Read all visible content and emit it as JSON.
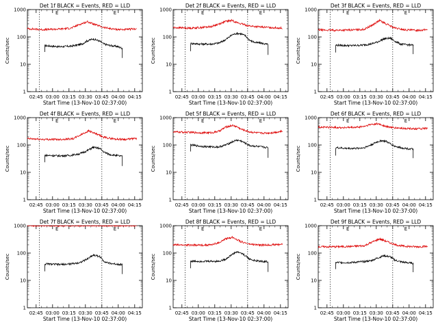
{
  "shared": {
    "xlabel": "Start Time (13-Nov-10 02:37:00)",
    "ylabel": "Counts/sec",
    "x_ticks": [
      "02:45",
      "03:00",
      "03:15",
      "03:30",
      "03:45",
      "04:00",
      "04:15"
    ],
    "y_ticks": [
      "1",
      "10",
      "100",
      "1000"
    ],
    "marker_label": "E",
    "colors": {
      "events": "#000000",
      "lld": "#dd0000",
      "axes": "#000000",
      "background": "#ffffff"
    },
    "x_range_minutes_after_0237": [
      0,
      105
    ],
    "y_range": [
      1,
      1000
    ],
    "y_scale": "log",
    "note_x_units": "minutes after 02:37:00"
  },
  "chart_data": [
    {
      "type": "line",
      "title": "Det 1f BLACK = Events, RED = LLD",
      "dashed_x": [
        11,
        68
      ],
      "marker_x": [
        27,
        80
      ],
      "series": [
        {
          "name": "Events",
          "color": "#000000",
          "x": [
            16,
            30,
            40,
            50,
            54,
            60,
            66,
            70,
            74,
            78,
            82,
            87
          ],
          "values": [
            48,
            44,
            46,
            55,
            70,
            85,
            70,
            55,
            50,
            47,
            45,
            38
          ]
        },
        {
          "name": "LLD",
          "color": "#dd0000",
          "x": [
            0,
            15,
            30,
            40,
            48,
            55,
            62,
            70,
            80,
            90,
            100
          ],
          "values": [
            200,
            185,
            195,
            210,
            290,
            360,
            280,
            220,
            190,
            185,
            200
          ]
        }
      ]
    },
    {
      "type": "line",
      "title": "Det 2f BLACK = Events, RED = LLD",
      "dashed_x": [
        11,
        68
      ],
      "marker_x": [
        27,
        80
      ],
      "series": [
        {
          "name": "Events",
          "color": "#000000",
          "x": [
            16,
            25,
            35,
            42,
            48,
            54,
            58,
            62,
            66,
            70,
            75,
            80,
            87
          ],
          "values": [
            58,
            55,
            55,
            60,
            80,
            120,
            135,
            130,
            110,
            75,
            62,
            60,
            52
          ]
        },
        {
          "name": "LLD",
          "color": "#dd0000",
          "x": [
            0,
            15,
            25,
            35,
            42,
            48,
            54,
            58,
            62,
            70,
            80,
            90,
            100
          ],
          "values": [
            220,
            210,
            220,
            240,
            300,
            370,
            400,
            340,
            300,
            250,
            230,
            220,
            210
          ]
        }
      ]
    },
    {
      "type": "line",
      "title": "Det 3f BLACK = Events, RED = LLD",
      "dashed_x": [
        11,
        68
      ],
      "marker_x": [
        27,
        80
      ],
      "series": [
        {
          "name": "Events",
          "color": "#000000",
          "x": [
            16,
            30,
            40,
            48,
            54,
            60,
            66,
            70,
            75,
            80,
            87
          ],
          "values": [
            50,
            48,
            50,
            55,
            65,
            85,
            90,
            70,
            55,
            52,
            50
          ]
        },
        {
          "name": "LLD",
          "color": "#dd0000",
          "x": [
            0,
            15,
            30,
            42,
            50,
            56,
            62,
            70,
            80,
            90,
            100
          ],
          "values": [
            180,
            175,
            180,
            190,
            280,
            400,
            300,
            210,
            180,
            175,
            185
          ]
        }
      ]
    },
    {
      "type": "line",
      "title": "Det 4f BLACK = Events, RED = LLD",
      "dashed_x": [
        11,
        68
      ],
      "marker_x": [
        27,
        80
      ],
      "series": [
        {
          "name": "Events",
          "color": "#000000",
          "x": [
            16,
            30,
            40,
            48,
            54,
            60,
            66,
            70,
            75,
            80,
            87
          ],
          "values": [
            42,
            40,
            42,
            48,
            60,
            82,
            75,
            55,
            45,
            42,
            38
          ]
        },
        {
          "name": "LLD",
          "color": "#dd0000",
          "x": [
            0,
            15,
            30,
            42,
            50,
            56,
            62,
            70,
            80,
            90,
            100
          ],
          "values": [
            170,
            160,
            160,
            170,
            250,
            330,
            260,
            190,
            165,
            160,
            175
          ]
        }
      ]
    },
    {
      "type": "line",
      "title": "Det 5f BLACK = Events, RED = LLD",
      "dashed_x": [
        11,
        68
      ],
      "marker_x": [
        27,
        80
      ],
      "series": [
        {
          "name": "Events",
          "color": "#000000",
          "x": [
            16,
            25,
            35,
            42,
            48,
            54,
            58,
            62,
            66,
            70,
            75,
            80,
            87
          ],
          "values": [
            100,
            90,
            85,
            85,
            100,
            130,
            150,
            140,
            115,
            95,
            90,
            85,
            80
          ]
        },
        {
          "name": "LLD",
          "color": "#dd0000",
          "x": [
            0,
            15,
            25,
            35,
            42,
            48,
            54,
            58,
            62,
            70,
            80,
            90,
            100
          ],
          "values": [
            300,
            290,
            280,
            280,
            320,
            450,
            520,
            470,
            380,
            300,
            270,
            280,
            320
          ]
        }
      ]
    },
    {
      "type": "line",
      "title": "Det 6f BLACK = Events, RED = LLD",
      "dashed_x": [
        11,
        68
      ],
      "marker_x": [
        27,
        80
      ],
      "series": [
        {
          "name": "Events",
          "color": "#000000",
          "x": [
            16,
            25,
            35,
            42,
            48,
            54,
            58,
            62,
            66,
            70,
            75,
            80,
            87
          ],
          "values": [
            80,
            75,
            75,
            80,
            100,
            130,
            145,
            135,
            110,
            90,
            80,
            75,
            70
          ]
        },
        {
          "name": "LLD",
          "color": "#dd0000",
          "x": [
            0,
            15,
            25,
            35,
            42,
            48,
            54,
            58,
            62,
            70,
            80,
            90,
            100
          ],
          "values": [
            450,
            440,
            430,
            440,
            480,
            560,
            600,
            540,
            470,
            420,
            400,
            390,
            400
          ]
        }
      ]
    },
    {
      "type": "line",
      "title": "Det 7f BLACK = Events, RED = LLD",
      "dashed_x": [
        11,
        68
      ],
      "marker_x": [
        27,
        80
      ],
      "series": [
        {
          "name": "Events",
          "color": "#000000",
          "x": [
            16,
            30,
            40,
            48,
            54,
            60,
            66,
            70,
            75,
            80,
            87
          ],
          "values": [
            40,
            38,
            40,
            45,
            58,
            85,
            75,
            50,
            42,
            40,
            38
          ]
        },
        {
          "name": "LLD",
          "color": "#dd0000",
          "x": [
            0,
            15,
            30,
            42,
            50,
            56,
            62,
            70,
            80,
            90,
            100
          ],
          "values": [
            1000,
            1000,
            980,
            1000,
            1000,
            1000,
            1000,
            1000,
            990,
            1000,
            1000
          ]
        }
      ]
    },
    {
      "type": "line",
      "title": "Det 8f BLACK = Events, RED = LLD",
      "dashed_x": [
        11,
        68
      ],
      "marker_x": [
        27,
        80
      ],
      "series": [
        {
          "name": "Events",
          "color": "#000000",
          "x": [
            16,
            25,
            35,
            42,
            48,
            54,
            58,
            62,
            66,
            70,
            75,
            80,
            87
          ],
          "values": [
            50,
            50,
            50,
            50,
            60,
            90,
            110,
            100,
            80,
            60,
            52,
            50,
            48
          ]
        },
        {
          "name": "LLD",
          "color": "#dd0000",
          "x": [
            0,
            15,
            25,
            35,
            42,
            48,
            54,
            58,
            62,
            70,
            80,
            90,
            100
          ],
          "values": [
            200,
            195,
            195,
            200,
            240,
            330,
            380,
            320,
            260,
            210,
            195,
            200,
            210
          ]
        }
      ]
    },
    {
      "type": "line",
      "title": "Det 9f BLACK = Events, RED = LLD",
      "dashed_x": [
        11,
        68
      ],
      "marker_x": [
        27,
        80
      ],
      "series": [
        {
          "name": "Events",
          "color": "#000000",
          "x": [
            16,
            30,
            40,
            48,
            54,
            60,
            66,
            70,
            75,
            80,
            87
          ],
          "values": [
            45,
            45,
            48,
            52,
            65,
            80,
            72,
            55,
            48,
            45,
            42
          ]
        },
        {
          "name": "LLD",
          "color": "#dd0000",
          "x": [
            0,
            15,
            30,
            42,
            50,
            56,
            62,
            70,
            80,
            90,
            100
          ],
          "values": [
            170,
            170,
            175,
            185,
            260,
            330,
            270,
            200,
            175,
            170,
            175
          ]
        }
      ]
    }
  ]
}
